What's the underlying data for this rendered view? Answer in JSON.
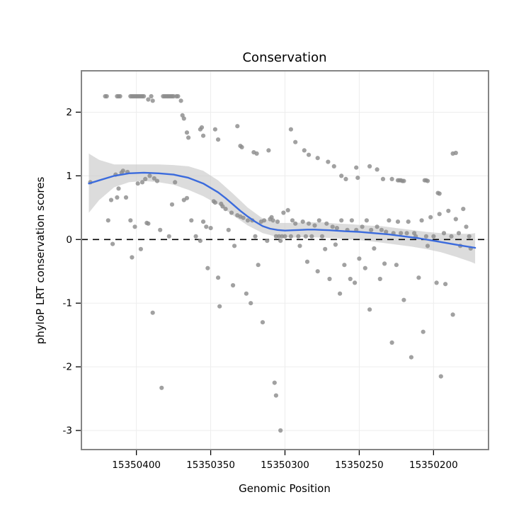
{
  "chart_data": {
    "type": "scatter",
    "title": "Conservation",
    "xlabel": "Genomic Position",
    "ylabel": "phyloP LRT conservation scores",
    "x_ticks": [
      15350400,
      15350350,
      15350300,
      15350250,
      15350200
    ],
    "y_ticks": [
      -3,
      -2,
      -1,
      0,
      1,
      2
    ],
    "xlim": [
      15350437,
      15350163
    ],
    "x_reversed": true,
    "ylim": [
      -3.3,
      2.65
    ],
    "grid": true,
    "legend": "none",
    "reference_line_y": 0,
    "colors": {
      "point": "#8c8c8c",
      "smooth": "#3b6bdd",
      "band": "#c9c9c9",
      "grid": "#ededed",
      "border": "#858585",
      "reference": "#000000",
      "panel": "#ffffff"
    },
    "points": [
      [
        15350431,
        0.9
      ],
      [
        15350421,
        2.25
      ],
      [
        15350420,
        2.25
      ],
      [
        15350419,
        0.3
      ],
      [
        15350417,
        0.62
      ],
      [
        15350416,
        -0.07
      ],
      [
        15350414,
        1.02
      ],
      [
        15350413,
        2.25
      ],
      [
        15350413,
        0.66
      ],
      [
        15350412,
        2.25
      ],
      [
        15350412,
        0.8
      ],
      [
        15350411,
        2.25
      ],
      [
        15350410,
        1.05
      ],
      [
        15350409,
        1.08
      ],
      [
        15350407,
        0.66
      ],
      [
        15350406,
        1.06
      ],
      [
        15350404,
        2.25
      ],
      [
        15350404,
        0.3
      ],
      [
        15350403,
        2.25
      ],
      [
        15350403,
        -0.28
      ],
      [
        15350402,
        2.25
      ],
      [
        15350401,
        2.25
      ],
      [
        15350401,
        0.2
      ],
      [
        15350400,
        2.25
      ],
      [
        15350399,
        2.25
      ],
      [
        15350399,
        0.88
      ],
      [
        15350398,
        2.25
      ],
      [
        15350397,
        2.25
      ],
      [
        15350397,
        -0.15
      ],
      [
        15350396,
        2.25
      ],
      [
        15350396,
        0.9
      ],
      [
        15350395,
        2.25
      ],
      [
        15350394,
        0.95
      ],
      [
        15350393,
        0.26
      ],
      [
        15350392,
        2.2
      ],
      [
        15350392,
        0.25
      ],
      [
        15350391,
        1.0
      ],
      [
        15350390,
        2.25
      ],
      [
        15350389,
        2.18
      ],
      [
        15350389,
        -1.15
      ],
      [
        15350388,
        0.96
      ],
      [
        15350386,
        0.92
      ],
      [
        15350384,
        0.15
      ],
      [
        15350383,
        -2.33
      ],
      [
        15350382,
        2.25
      ],
      [
        15350381,
        2.25
      ],
      [
        15350380,
        2.25
      ],
      [
        15350379,
        2.25
      ],
      [
        15350378,
        2.25
      ],
      [
        15350378,
        0.05
      ],
      [
        15350377,
        2.25
      ],
      [
        15350376,
        2.25
      ],
      [
        15350376,
        0.55
      ],
      [
        15350375,
        2.25
      ],
      [
        15350374,
        0.9
      ],
      [
        15350373,
        2.25
      ],
      [
        15350372,
        2.25
      ],
      [
        15350370,
        2.18
      ],
      [
        15350369,
        1.95
      ],
      [
        15350368,
        1.9
      ],
      [
        15350368,
        0.62
      ],
      [
        15350366,
        1.68
      ],
      [
        15350366,
        0.65
      ],
      [
        15350365,
        1.6
      ],
      [
        15350363,
        0.3
      ],
      [
        15350360,
        0.05
      ],
      [
        15350357,
        1.73
      ],
      [
        15350357,
        -0.02
      ],
      [
        15350356,
        1.76
      ],
      [
        15350355,
        1.63
      ],
      [
        15350355,
        0.28
      ],
      [
        15350353,
        0.2
      ],
      [
        15350352,
        -0.45
      ],
      [
        15350350,
        0.18
      ],
      [
        15350348,
        0.6
      ],
      [
        15350347,
        1.73
      ],
      [
        15350347,
        0.58
      ],
      [
        15350345,
        1.57
      ],
      [
        15350345,
        -0.6
      ],
      [
        15350344,
        -1.05
      ],
      [
        15350343,
        0.56
      ],
      [
        15350342,
        0.52
      ],
      [
        15350340,
        0.48
      ],
      [
        15350338,
        0.15
      ],
      [
        15350336,
        0.42
      ],
      [
        15350335,
        -0.72
      ],
      [
        15350334,
        -0.1
      ],
      [
        15350332,
        1.78
      ],
      [
        15350332,
        0.38
      ],
      [
        15350330,
        1.47
      ],
      [
        15350330,
        0.36
      ],
      [
        15350329,
        1.45
      ],
      [
        15350328,
        0.34
      ],
      [
        15350326,
        -0.85
      ],
      [
        15350325,
        0.3
      ],
      [
        15350323,
        -1.0
      ],
      [
        15350322,
        0.3
      ],
      [
        15350321,
        1.37
      ],
      [
        15350320,
        0.05
      ],
      [
        15350319,
        1.35
      ],
      [
        15350318,
        -0.4
      ],
      [
        15350316,
        0.28
      ],
      [
        15350315,
        -1.3
      ],
      [
        15350314,
        0.3
      ],
      [
        15350312,
        -0.02
      ],
      [
        15350311,
        1.4
      ],
      [
        15350310,
        0.32
      ],
      [
        15350309,
        0.35
      ],
      [
        15350308,
        0.3
      ],
      [
        15350307,
        -2.25
      ],
      [
        15350306,
        0.05
      ],
      [
        15350306,
        -2.45
      ],
      [
        15350305,
        0.28
      ],
      [
        15350304,
        0.05
      ],
      [
        15350303,
        -3.0
      ],
      [
        15350303,
        -0.02
      ],
      [
        15350302,
        0.05
      ],
      [
        15350301,
        0.42
      ],
      [
        15350300,
        0.05
      ],
      [
        15350298,
        0.46
      ],
      [
        15350296,
        1.73
      ],
      [
        15350296,
        0.05
      ],
      [
        15350295,
        0.3
      ],
      [
        15350293,
        1.53
      ],
      [
        15350293,
        0.25
      ],
      [
        15350291,
        0.05
      ],
      [
        15350290,
        -0.1
      ],
      [
        15350288,
        0.28
      ],
      [
        15350287,
        1.4
      ],
      [
        15350286,
        0.05
      ],
      [
        15350285,
        -0.35
      ],
      [
        15350284,
        1.33
      ],
      [
        15350284,
        0.25
      ],
      [
        15350282,
        0.05
      ],
      [
        15350280,
        0.22
      ],
      [
        15350278,
        1.28
      ],
      [
        15350278,
        -0.5
      ],
      [
        15350277,
        0.3
      ],
      [
        15350275,
        0.05
      ],
      [
        15350273,
        -0.15
      ],
      [
        15350272,
        0.25
      ],
      [
        15350271,
        1.22
      ],
      [
        15350270,
        -0.62
      ],
      [
        15350268,
        0.2
      ],
      [
        15350267,
        1.15
      ],
      [
        15350266,
        -0.08
      ],
      [
        15350265,
        0.18
      ],
      [
        15350263,
        -0.85
      ],
      [
        15350262,
        1.0
      ],
      [
        15350262,
        0.3
      ],
      [
        15350260,
        -0.4
      ],
      [
        15350259,
        0.95
      ],
      [
        15350258,
        0.15
      ],
      [
        15350256,
        -0.62
      ],
      [
        15350255,
        0.3
      ],
      [
        15350253,
        -0.68
      ],
      [
        15350252,
        1.13
      ],
      [
        15350252,
        0.15
      ],
      [
        15350251,
        0.97
      ],
      [
        15350250,
        -0.3
      ],
      [
        15350248,
        0.2
      ],
      [
        15350246,
        -0.45
      ],
      [
        15350245,
        0.3
      ],
      [
        15350243,
        1.15
      ],
      [
        15350243,
        -1.1
      ],
      [
        15350242,
        0.15
      ],
      [
        15350240,
        -0.14
      ],
      [
        15350238,
        1.1
      ],
      [
        15350238,
        0.2
      ],
      [
        15350236,
        -0.62
      ],
      [
        15350235,
        0.15
      ],
      [
        15350234,
        0.95
      ],
      [
        15350233,
        -0.38
      ],
      [
        15350232,
        0.12
      ],
      [
        15350230,
        0.3
      ],
      [
        15350228,
        0.95
      ],
      [
        15350228,
        -1.62
      ],
      [
        15350227,
        0.1
      ],
      [
        15350225,
        -0.4
      ],
      [
        15350224,
        0.93
      ],
      [
        15350224,
        0.28
      ],
      [
        15350223,
        0.93
      ],
      [
        15350222,
        0.93
      ],
      [
        15350222,
        0.1
      ],
      [
        15350221,
        0.92
      ],
      [
        15350220,
        0.92
      ],
      [
        15350220,
        -0.95
      ],
      [
        15350218,
        0.1
      ],
      [
        15350217,
        0.28
      ],
      [
        15350215,
        -1.85
      ],
      [
        15350213,
        0.1
      ],
      [
        15350212,
        0.05
      ],
      [
        15350210,
        -0.6
      ],
      [
        15350208,
        0.3
      ],
      [
        15350207,
        -1.45
      ],
      [
        15350206,
        0.93
      ],
      [
        15350205,
        0.93
      ],
      [
        15350205,
        0.05
      ],
      [
        15350204,
        0.92
      ],
      [
        15350204,
        -0.1
      ],
      [
        15350202,
        0.35
      ],
      [
        15350200,
        0.05
      ],
      [
        15350198,
        -0.68
      ],
      [
        15350197,
        0.73
      ],
      [
        15350196,
        0.72
      ],
      [
        15350196,
        0.4
      ],
      [
        15350195,
        -2.15
      ],
      [
        15350193,
        0.1
      ],
      [
        15350192,
        -0.7
      ],
      [
        15350190,
        0.45
      ],
      [
        15350188,
        0.05
      ],
      [
        15350187,
        1.35
      ],
      [
        15350187,
        -1.18
      ],
      [
        15350185,
        1.36
      ],
      [
        15350185,
        0.32
      ],
      [
        15350183,
        0.1
      ],
      [
        15350182,
        -0.1
      ],
      [
        15350180,
        0.48
      ],
      [
        15350178,
        0.2
      ],
      [
        15350176,
        0.05
      ],
      [
        15350175,
        -0.14
      ]
    ],
    "smooth_line": [
      [
        15350432,
        0.88
      ],
      [
        15350425,
        0.93
      ],
      [
        15350415,
        1.0
      ],
      [
        15350405,
        1.04
      ],
      [
        15350395,
        1.05
      ],
      [
        15350385,
        1.04
      ],
      [
        15350375,
        1.02
      ],
      [
        15350365,
        0.97
      ],
      [
        15350355,
        0.88
      ],
      [
        15350345,
        0.74
      ],
      [
        15350340,
        0.65
      ],
      [
        15350335,
        0.55
      ],
      [
        15350330,
        0.45
      ],
      [
        15350325,
        0.36
      ],
      [
        15350320,
        0.28
      ],
      [
        15350315,
        0.21
      ],
      [
        15350310,
        0.17
      ],
      [
        15350305,
        0.15
      ],
      [
        15350300,
        0.14
      ],
      [
        15350295,
        0.145
      ],
      [
        15350290,
        0.15
      ],
      [
        15350285,
        0.155
      ],
      [
        15350280,
        0.155
      ],
      [
        15350275,
        0.15
      ],
      [
        15350270,
        0.145
      ],
      [
        15350260,
        0.13
      ],
      [
        15350250,
        0.12
      ],
      [
        15350240,
        0.1
      ],
      [
        15350230,
        0.08
      ],
      [
        15350220,
        0.05
      ],
      [
        15350210,
        0.02
      ],
      [
        15350200,
        -0.02
      ],
      [
        15350190,
        -0.06
      ],
      [
        15350180,
        -0.1
      ],
      [
        15350172,
        -0.13
      ]
    ],
    "confidence_band": [
      [
        15350432,
        0.42,
        1.35
      ],
      [
        15350425,
        0.62,
        1.25
      ],
      [
        15350415,
        0.82,
        1.18
      ],
      [
        15350405,
        0.9,
        1.18
      ],
      [
        15350395,
        0.92,
        1.18
      ],
      [
        15350385,
        0.9,
        1.18
      ],
      [
        15350375,
        0.86,
        1.17
      ],
      [
        15350365,
        0.78,
        1.15
      ],
      [
        15350355,
        0.68,
        1.08
      ],
      [
        15350345,
        0.55,
        0.93
      ],
      [
        15350335,
        0.38,
        0.72
      ],
      [
        15350325,
        0.22,
        0.5
      ],
      [
        15350315,
        0.1,
        0.33
      ],
      [
        15350305,
        0.04,
        0.26
      ],
      [
        15350295,
        0.03,
        0.26
      ],
      [
        15350285,
        0.04,
        0.27
      ],
      [
        15350275,
        0.03,
        0.27
      ],
      [
        15350265,
        0.02,
        0.25
      ],
      [
        15350255,
        0.0,
        0.24
      ],
      [
        15350245,
        -0.02,
        0.22
      ],
      [
        15350235,
        -0.05,
        0.21
      ],
      [
        15350225,
        -0.08,
        0.18
      ],
      [
        15350215,
        -0.11,
        0.15
      ],
      [
        15350205,
        -0.15,
        0.12
      ],
      [
        15350195,
        -0.2,
        0.1
      ],
      [
        15350185,
        -0.27,
        0.09
      ],
      [
        15350175,
        -0.35,
        0.09
      ],
      [
        15350172,
        -0.38,
        0.1
      ]
    ]
  }
}
